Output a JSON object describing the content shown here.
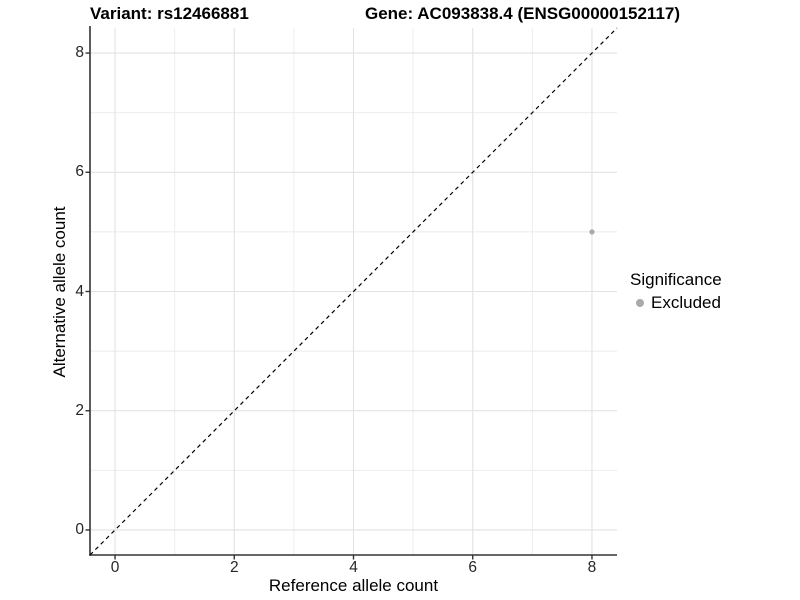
{
  "chart_data": {
    "type": "scatter",
    "title_left": "Variant: rs12466881",
    "title_right": "Gene: AC093838.4 (ENSG00000152117)",
    "xlabel": "Reference allele count",
    "ylabel": "Alternative allele count",
    "xlim": [
      -0.42,
      8.42
    ],
    "ylim": [
      -0.42,
      8.42
    ],
    "x_ticks": [
      0,
      2,
      4,
      6,
      8
    ],
    "y_ticks": [
      0,
      2,
      4,
      6,
      8
    ],
    "x_minor_gridlines": [
      1,
      3,
      5,
      7
    ],
    "y_minor_gridlines": [
      1,
      3,
      5,
      7
    ],
    "grid": "on",
    "identity_line": {
      "equation": "y = x",
      "style": "dashed",
      "color": "#000000"
    },
    "series": [
      {
        "name": "Excluded",
        "color": "#aaaaaa",
        "points": [
          {
            "x": 8,
            "y": 5
          }
        ]
      }
    ],
    "legend": {
      "title": "Significance",
      "position": "right",
      "items": [
        {
          "label": "Excluded",
          "color": "#aaaaaa",
          "marker": "circle"
        }
      ]
    }
  },
  "colors": {
    "background": "#ffffff",
    "grid_major": "#e2e2e2",
    "grid_minor": "#ebebeb",
    "axis": "#333333",
    "tick_label": "#262626",
    "point": "#aaaaaa"
  }
}
